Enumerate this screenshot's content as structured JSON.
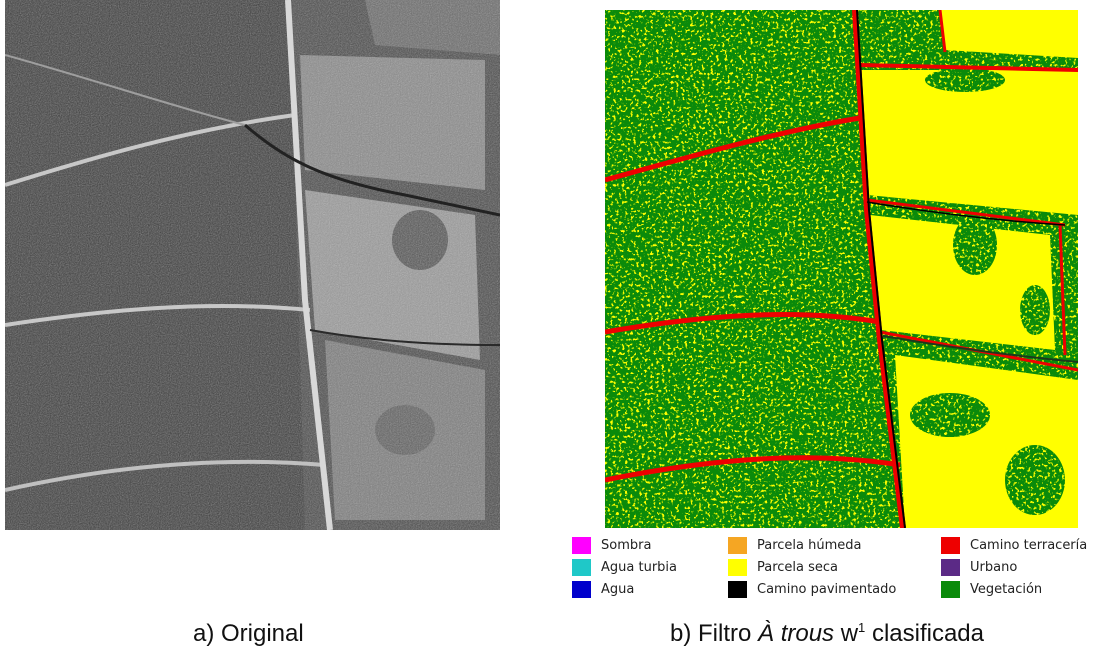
{
  "legend": {
    "items": [
      {
        "label": "Sombra",
        "color": "#ff00ff"
      },
      {
        "label": "Agua turbia",
        "color": "#1fc8c8"
      },
      {
        "label": "Agua",
        "color": "#0000cc"
      },
      {
        "label": "Parcela húmeda",
        "color": "#f5a623"
      },
      {
        "label": "Parcela seca",
        "color": "#ffff00"
      },
      {
        "label": "Camino pavimentado",
        "color": "#000000"
      },
      {
        "label": "Camino terracería",
        "color": "#ee0000"
      },
      {
        "label": "Urbano",
        "color": "#5b2a86"
      },
      {
        "label": "Vegetación",
        "color": "#0a8a0a"
      }
    ]
  },
  "captions": {
    "a": "a) Original",
    "b_prefix": "b) Filtro ",
    "b_italic": "À trous",
    "b_w": " w",
    "b_sup": "1",
    "b_suffix": " clasificada"
  }
}
